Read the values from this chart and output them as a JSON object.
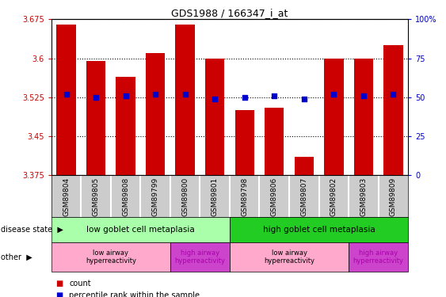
{
  "title": "GDS1988 / 166347_i_at",
  "samples": [
    "GSM89804",
    "GSM89805",
    "GSM89808",
    "GSM89799",
    "GSM89800",
    "GSM89801",
    "GSM89798",
    "GSM89806",
    "GSM89807",
    "GSM89802",
    "GSM89803",
    "GSM89809"
  ],
  "count_values": [
    3.665,
    3.595,
    3.565,
    3.61,
    3.665,
    3.6,
    3.5,
    3.505,
    3.41,
    3.6,
    3.6,
    3.625
  ],
  "percentile_values": [
    52,
    50,
    51,
    52,
    52,
    49,
    50,
    51,
    49,
    52,
    51,
    52
  ],
  "ylim_left": [
    3.375,
    3.675
  ],
  "ylim_right": [
    0,
    100
  ],
  "yticks_left": [
    3.375,
    3.45,
    3.525,
    3.6,
    3.675
  ],
  "yticks_right": [
    0,
    25,
    50,
    75,
    100
  ],
  "ytick_labels_left": [
    "3.375",
    "3.45",
    "3.525",
    "3.6",
    "3.675"
  ],
  "ytick_labels_right": [
    "0",
    "25",
    "50",
    "75",
    "100%"
  ],
  "bar_color": "#CC0000",
  "dot_color": "#0000CC",
  "bar_bottom": 3.375,
  "disease_state_groups": [
    {
      "label": "low goblet cell metaplasia",
      "start": 0,
      "end": 5,
      "color": "#AAFFAA"
    },
    {
      "label": "high goblet cell metaplasia",
      "start": 6,
      "end": 11,
      "color": "#22CC22"
    }
  ],
  "other_groups": [
    {
      "label": "low airway\nhyperreactivity",
      "start": 0,
      "end": 3,
      "color": "#FFAACC",
      "fontcolor": "#000000"
    },
    {
      "label": "high airway\nhyperreactivity",
      "start": 4,
      "end": 5,
      "color": "#CC44CC",
      "fontcolor": "#AA00AA"
    },
    {
      "label": "low airway\nhyperreactivity",
      "start": 6,
      "end": 9,
      "color": "#FFAACC",
      "fontcolor": "#000000"
    },
    {
      "label": "high airway\nhyperreactivity",
      "start": 10,
      "end": 11,
      "color": "#CC44CC",
      "fontcolor": "#AA00AA"
    }
  ],
  "background_color": "#FFFFFF",
  "left_label_color": "#CC0000",
  "right_label_color": "#0000CC",
  "tick_label_bg": "#CCCCCC"
}
